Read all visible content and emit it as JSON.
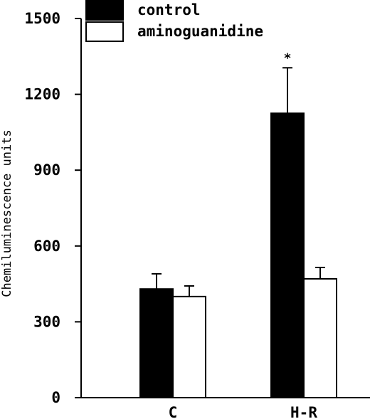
{
  "chart_data": {
    "type": "bar",
    "title": "",
    "xlabel": "",
    "ylabel": "Chemiluminescence units",
    "categories": [
      "C",
      "H-R"
    ],
    "ylim": [
      0,
      1500
    ],
    "yticks": [
      0,
      300,
      600,
      900,
      1200,
      1500
    ],
    "grid": false,
    "legend_position": "top-left",
    "series": [
      {
        "name": "control",
        "values": [
          430,
          1125
        ],
        "errors": [
          60,
          180
        ],
        "color": "#000000"
      },
      {
        "name": "aminoguanidine",
        "values": [
          400,
          470
        ],
        "errors": [
          42,
          45
        ],
        "color": "#ffffff"
      }
    ],
    "annotations": [
      {
        "category": "H-R",
        "series": "control",
        "text": "*"
      }
    ]
  }
}
